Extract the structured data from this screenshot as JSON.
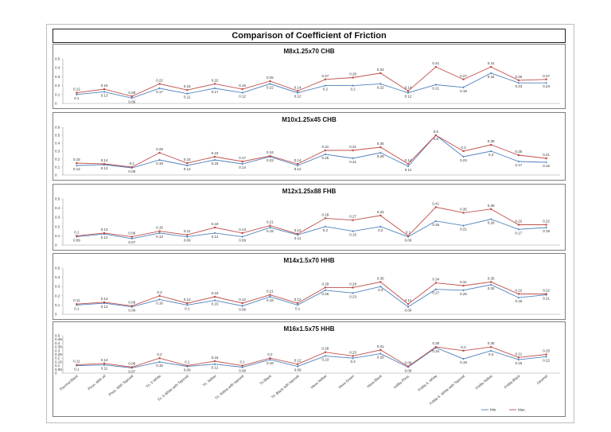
{
  "title": "Comparison of Coefficient of Friction",
  "colors": {
    "min": "#4f81bd",
    "max": "#c0504d"
  },
  "chart_data": [
    {
      "type": "line",
      "title": "M8x1.25x70 CHB",
      "ylim": [
        0,
        0.5
      ],
      "yticks": [
        "0",
        "0.1",
        "0.2",
        "0.3",
        "0.4",
        "0.5"
      ],
      "categories": [
        "Thermal Black",
        "Phos. With oil",
        "Phos. With Topcoat",
        "Tri. 5 White",
        "Tri. 5 White with Topcoat",
        "Tri. Yellow",
        "Tri. Yellow with topcoat",
        "Tri Black",
        "Tri. Black with topcoat",
        "Hexa Yellow",
        "Hexa Green",
        "Hexa Black",
        "Intillia Phos.",
        "Fritilia 5. White",
        "Fritilia 5. White with Topcoat",
        "Fritilia Yellow",
        "Fritilia Black",
        "Geomet"
      ],
      "series": [
        {
          "name": "Min.",
          "values": [
            0.1,
            0.13,
            0.06,
            0.17,
            0.11,
            0.17,
            0.12,
            0.22,
            0.12,
            0.2,
            0.2,
            0.22,
            0.12,
            0.21,
            0.18,
            0.34,
            0.23,
            0.23
          ]
        },
        {
          "name": "Max.",
          "values": [
            0.12,
            0.16,
            0.08,
            0.22,
            0.15,
            0.22,
            0.16,
            0.25,
            0.14,
            0.27,
            0.29,
            0.34,
            0.14,
            0.41,
            0.27,
            0.41,
            0.26,
            0.27
          ]
        }
      ]
    },
    {
      "type": "line",
      "title": "M10x1.25x45 CHB",
      "ylim": [
        0,
        0.6
      ],
      "yticks": [
        "0",
        "0.1",
        "0.2",
        "0.3",
        "0.4",
        "0.5",
        "0.6"
      ],
      "categories": [
        "Thermal Black",
        "Phos. With oil",
        "Phos. With Topcoat",
        "Tri. 5 White",
        "Tri. 5 White with Topcoat",
        "Tri. Yellow",
        "Tri. Yellow with topcoat",
        "Tri Black",
        "Tri. Black with topcoat",
        "Hexa Yellow",
        "Hexa Green",
        "Hexa Black",
        "Intillia Phos.",
        "Fritilia 5. White",
        "Fritilia 5. White with Topcoat",
        "Fritilia Yellow",
        "Fritilia Black",
        "Geomet"
      ],
      "series": [
        {
          "name": "Min.",
          "values": [
            0.12,
            0.13,
            0.09,
            0.19,
            0.12,
            0.19,
            0.14,
            0.23,
            0.12,
            0.26,
            0.21,
            0.28,
            0.11,
            0.5,
            0.23,
            0.3,
            0.17,
            0.16
          ]
        },
        {
          "name": "Max.",
          "values": [
            0.15,
            0.14,
            0.1,
            0.28,
            0.15,
            0.23,
            0.17,
            0.24,
            0.14,
            0.31,
            0.31,
            0.35,
            0.14,
            0.5,
            0.3,
            0.38,
            0.25,
            0.21
          ]
        }
      ]
    },
    {
      "type": "line",
      "title": "M12x1.25x88 FHB",
      "ylim": [
        0,
        0.5
      ],
      "yticks": [
        "0",
        "0.1",
        "0.2",
        "0.3",
        "0.4",
        "0.5"
      ],
      "categories": [
        "Thermal Black",
        "Phos. With oil",
        "Phos. With Topcoat",
        "Tri. 5 White",
        "Tri. 5 White with Topcoat",
        "Tri. Yellow",
        "Tri. Yellow with topcoat",
        "Tri Black",
        "Tri. Black with topcoat",
        "Hexa Yellow",
        "Hexa Green",
        "Hexa Black",
        "Intillia Phos.",
        "Fritilia 5. White",
        "Fritilia 5. White with Topcoat",
        "Fritilia Yellow",
        "Fritilia Black",
        "Geomet"
      ],
      "series": [
        {
          "name": "Min.",
          "values": [
            0.09,
            0.12,
            0.07,
            0.13,
            0.09,
            0.13,
            0.09,
            0.19,
            0.11,
            0.2,
            0.15,
            0.2,
            0.09,
            0.26,
            0.21,
            0.28,
            0.17,
            0.19
          ]
        },
        {
          "name": "Max.",
          "values": [
            0.1,
            0.13,
            0.09,
            0.15,
            0.11,
            0.19,
            0.13,
            0.21,
            0.12,
            0.29,
            0.27,
            0.32,
            0.1,
            0.41,
            0.35,
            0.39,
            0.22,
            0.22
          ]
        }
      ]
    },
    {
      "type": "line",
      "title": "M14x1.5x70 HHB",
      "ylim": [
        0,
        0.5
      ],
      "yticks": [
        "0",
        "0.1",
        "0.2",
        "0.3",
        "0.4",
        "0.5"
      ],
      "categories": [
        "Thermal Black",
        "Phos. With oil",
        "Phos. With Topcoat",
        "Tri. 5 White",
        "Tri. 5 White with Topcoat",
        "Tri. Yellow",
        "Tri. Yellow with topcoat",
        "Tri Black",
        "Tri. Black with topcoat",
        "Hexa Yellow",
        "Hexa Green",
        "Hexa Black",
        "Intillia Phos.",
        "Fritilia 5. White",
        "Fritilia 5. White with Topcoat",
        "Fritilia Yellow",
        "Fritilia Black",
        "Geomet"
      ],
      "series": [
        {
          "name": "Min.",
          "values": [
            0.1,
            0.12,
            0.08,
            0.16,
            0.1,
            0.15,
            0.09,
            0.19,
            0.1,
            0.26,
            0.23,
            0.3,
            0.08,
            0.27,
            0.26,
            0.32,
            0.18,
            0.21
          ]
        },
        {
          "name": "Max.",
          "values": [
            0.11,
            0.13,
            0.09,
            0.2,
            0.12,
            0.19,
            0.12,
            0.21,
            0.12,
            0.29,
            0.29,
            0.35,
            0.11,
            0.34,
            0.31,
            0.35,
            0.22,
            0.22
          ]
        }
      ]
    },
    {
      "type": "line",
      "title": "M16x1.5x75 HHB",
      "ylim": [
        0,
        0.5
      ],
      "yticks": [
        "0",
        "0.05",
        "0.1",
        "0.15",
        "0.2",
        "0.25",
        "0.3",
        "0.35",
        "0.4",
        "0.45",
        "0.5"
      ],
      "categories": [
        "Thermal Black",
        "Phos. With oil",
        "Phos. With Topcoat",
        "Tri. 5 White",
        "Tri. 5 White with Topcoat",
        "Tri. Yellow",
        "Tri. Yellow with topcoat",
        "Tri Black",
        "Tri. Black with topcoat",
        "Hexa Yellow",
        "Hexa Green",
        "Hexa Black",
        "Intillia Phos.",
        "Fritilia 5. White",
        "Fritilia 5. White with Topcoat",
        "Fritilia Yellow",
        "Fritilia Black",
        "Geomet"
      ],
      "series": [
        {
          "name": "Min.",
          "values": [
            0.1,
            0.11,
            0.07,
            0.15,
            0.09,
            0.12,
            0.08,
            0.18,
            0.09,
            0.23,
            0.2,
            0.26,
            0.08,
            0.34,
            0.19,
            0.3,
            0.18,
            0.22
          ]
        },
        {
          "name": "Max.",
          "values": [
            0.11,
            0.13,
            0.08,
            0.2,
            0.1,
            0.16,
            0.1,
            0.2,
            0.12,
            0.28,
            0.23,
            0.31,
            0.09,
            0.35,
            0.3,
            0.35,
            0.21,
            0.25
          ]
        }
      ]
    }
  ]
}
